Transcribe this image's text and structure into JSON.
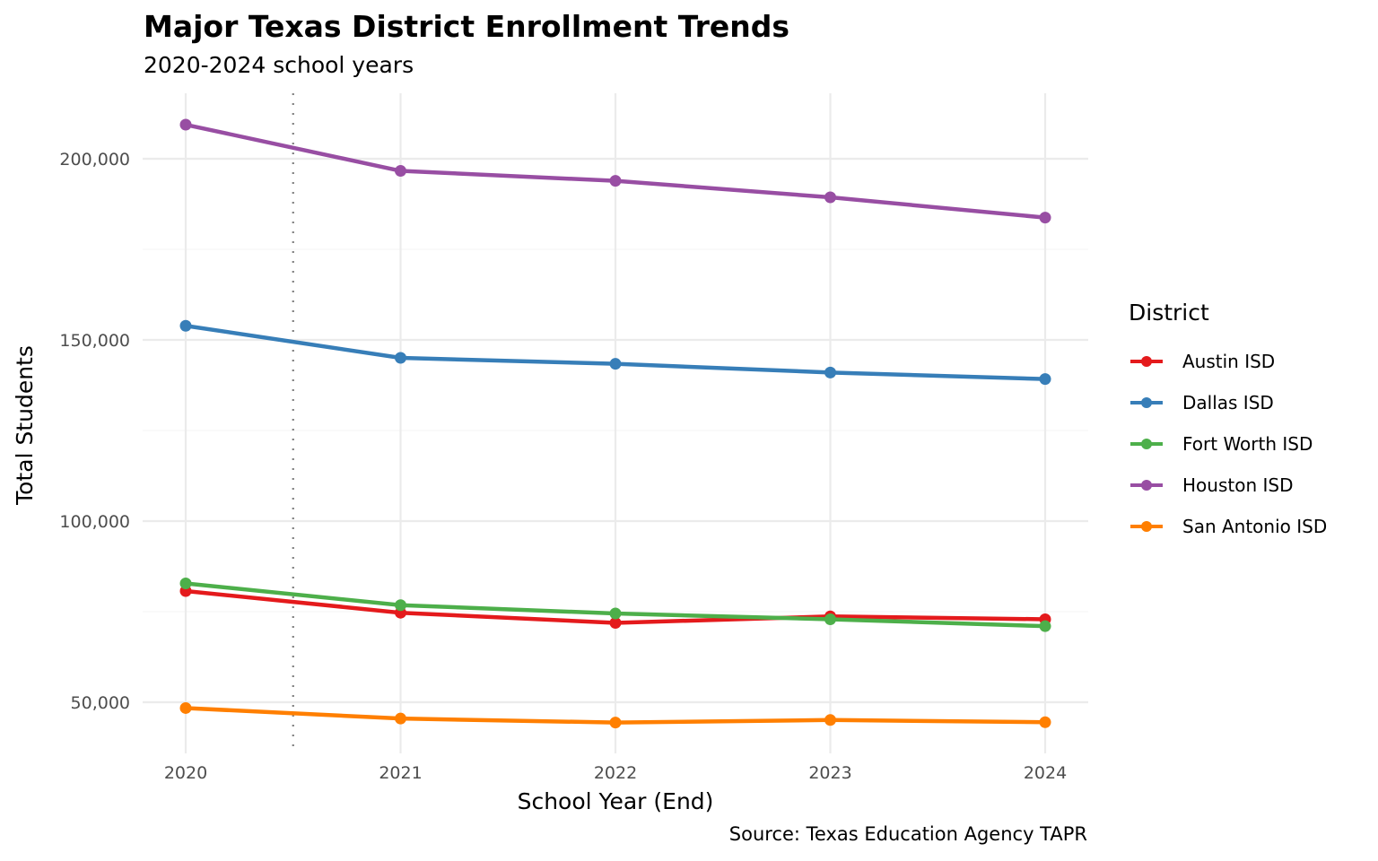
{
  "header": {
    "title": "Major Texas District Enrollment Trends",
    "subtitle": "2020-2024 school years",
    "caption": "Source: Texas Education Agency TAPR"
  },
  "chart_data": {
    "type": "line",
    "title": "Major Texas District Enrollment Trends",
    "subtitle": "2020-2024 school years",
    "xlabel": "School Year (End)",
    "ylabel": "Total Students",
    "x": [
      2020,
      2021,
      2022,
      2023,
      2024
    ],
    "x_tick_labels": [
      "2020",
      "2021",
      "2022",
      "2023",
      "2024"
    ],
    "y_ticks": [
      50000,
      100000,
      150000,
      200000
    ],
    "y_tick_labels": [
      "50,000",
      "100,000",
      "150,000",
      "200,000"
    ],
    "xlim": [
      2019.8,
      2024.2
    ],
    "ylim": [
      40000,
      217000
    ],
    "grid": true,
    "reference_line": {
      "x": 2020.5,
      "style": "dotted",
      "color": "#808080"
    },
    "legend": {
      "title": "District",
      "position": "right"
    },
    "series": [
      {
        "name": "Austin ISD",
        "color": "#E41A1C",
        "values": [
          80700,
          74700,
          71900,
          73700,
          72900
        ]
      },
      {
        "name": "Dallas ISD",
        "color": "#377EB8",
        "values": [
          153900,
          145050,
          143400,
          141000,
          139200
        ]
      },
      {
        "name": "Fort Worth ISD",
        "color": "#4DAF4A",
        "values": [
          82800,
          76800,
          74500,
          72900,
          71000
        ]
      },
      {
        "name": "Houston ISD",
        "color": "#984EA3",
        "values": [
          209400,
          196650,
          193900,
          189350,
          183750
        ]
      },
      {
        "name": "San Antonio ISD",
        "color": "#FF7F00",
        "values": [
          48400,
          45500,
          44400,
          45100,
          44500
        ]
      }
    ],
    "caption": "Source: Texas Education Agency TAPR"
  }
}
